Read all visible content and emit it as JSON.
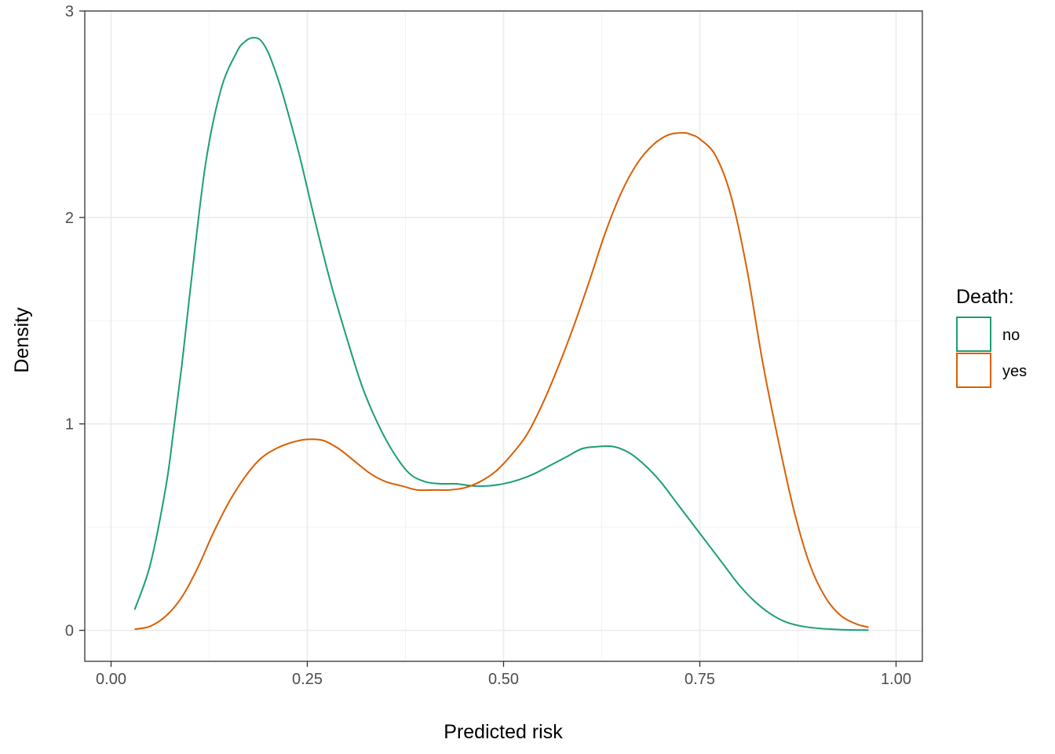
{
  "chart_data": {
    "type": "line",
    "subtype": "density",
    "xlabel": "Predicted risk",
    "ylabel": "Density",
    "xlim": [
      -0.0335,
      1.0335
    ],
    "ylim": [
      -0.15,
      3.0
    ],
    "xticks": [
      0.0,
      0.25,
      0.5,
      0.75,
      1.0
    ],
    "xtick_labels": [
      "0.00",
      "0.25",
      "0.50",
      "0.75",
      "1.00"
    ],
    "yticks": [
      0,
      1,
      2,
      3
    ],
    "ytick_labels": [
      "0",
      "1",
      "2",
      "3"
    ],
    "grid": true,
    "legend": {
      "title": "Death:",
      "position": "right"
    },
    "series": [
      {
        "name": "no",
        "color": "#1b9e77",
        "x": [
          0.03,
          0.05,
          0.07,
          0.08,
          0.09,
          0.1,
          0.12,
          0.14,
          0.16,
          0.17,
          0.18,
          0.19,
          0.2,
          0.21,
          0.22,
          0.24,
          0.26,
          0.28,
          0.3,
          0.32,
          0.34,
          0.36,
          0.38,
          0.4,
          0.42,
          0.44,
          0.46,
          0.48,
          0.5,
          0.52,
          0.54,
          0.56,
          0.58,
          0.6,
          0.62,
          0.64,
          0.66,
          0.68,
          0.7,
          0.72,
          0.74,
          0.76,
          0.78,
          0.8,
          0.82,
          0.84,
          0.86,
          0.88,
          0.9,
          0.92,
          0.94,
          0.965
        ],
        "values": [
          0.1,
          0.32,
          0.7,
          0.98,
          1.28,
          1.62,
          2.25,
          2.62,
          2.8,
          2.85,
          2.87,
          2.86,
          2.8,
          2.7,
          2.58,
          2.3,
          1.98,
          1.68,
          1.42,
          1.18,
          1.0,
          0.86,
          0.76,
          0.72,
          0.71,
          0.71,
          0.7,
          0.7,
          0.71,
          0.73,
          0.76,
          0.8,
          0.84,
          0.88,
          0.89,
          0.89,
          0.86,
          0.8,
          0.72,
          0.62,
          0.52,
          0.42,
          0.32,
          0.22,
          0.14,
          0.08,
          0.04,
          0.02,
          0.01,
          0.005,
          0.002,
          0.001
        ]
      },
      {
        "name": "yes",
        "color": "#d95f02",
        "x": [
          0.03,
          0.05,
          0.07,
          0.09,
          0.11,
          0.13,
          0.15,
          0.17,
          0.19,
          0.21,
          0.23,
          0.25,
          0.27,
          0.29,
          0.31,
          0.33,
          0.35,
          0.37,
          0.39,
          0.41,
          0.43,
          0.45,
          0.47,
          0.49,
          0.51,
          0.53,
          0.55,
          0.57,
          0.59,
          0.61,
          0.63,
          0.65,
          0.67,
          0.69,
          0.71,
          0.73,
          0.74,
          0.75,
          0.77,
          0.79,
          0.81,
          0.83,
          0.85,
          0.87,
          0.89,
          0.91,
          0.93,
          0.95,
          0.965
        ],
        "values": [
          0.005,
          0.02,
          0.07,
          0.16,
          0.3,
          0.47,
          0.62,
          0.74,
          0.83,
          0.88,
          0.91,
          0.925,
          0.92,
          0.88,
          0.82,
          0.76,
          0.72,
          0.7,
          0.68,
          0.68,
          0.68,
          0.69,
          0.72,
          0.77,
          0.85,
          0.95,
          1.1,
          1.28,
          1.48,
          1.7,
          1.93,
          2.12,
          2.26,
          2.35,
          2.4,
          2.41,
          2.4,
          2.38,
          2.3,
          2.1,
          1.75,
          1.3,
          0.92,
          0.58,
          0.32,
          0.16,
          0.07,
          0.03,
          0.015
        ]
      }
    ]
  }
}
